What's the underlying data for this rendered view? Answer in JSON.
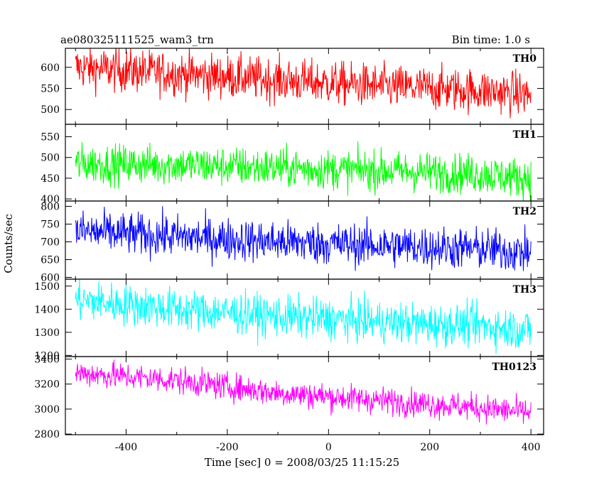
{
  "chart_data": {
    "type": "line",
    "title": "ae080325111525_wam3_trn",
    "bin_time": "Bin time: 1.0 s",
    "xlabel": "Time [sec] 0 = 2008/03/25 11:15:25",
    "ylabel": "Counts/sec",
    "xlim": [
      -520,
      425
    ],
    "xticks": [
      -400,
      -200,
      0,
      200,
      400
    ],
    "data_x_range": [
      -500,
      400
    ],
    "panels": [
      {
        "name": "TH0",
        "color": "#ff0000",
        "ylim": [
          465,
          645
        ],
        "yticks": [
          500,
          550,
          600
        ],
        "trend": {
          "x": [
            -500,
            -300,
            -100,
            100,
            200,
            300,
            400
          ],
          "y": [
            600,
            585,
            570,
            555,
            550,
            545,
            535
          ]
        },
        "noise": 26
      },
      {
        "name": "TH1",
        "color": "#00ff00",
        "ylim": [
          395,
          580
        ],
        "yticks": [
          400,
          450,
          500,
          550
        ],
        "trend": {
          "x": [
            -500,
            -300,
            -100,
            100,
            200,
            300,
            400
          ],
          "y": [
            485,
            482,
            475,
            468,
            465,
            460,
            450
          ]
        },
        "noise": 24
      },
      {
        "name": "TH2",
        "color": "#0000ff",
        "ylim": [
          595,
          815
        ],
        "yticks": [
          600,
          650,
          700,
          750,
          800
        ],
        "trend": {
          "x": [
            -500,
            -300,
            -100,
            100,
            200,
            300,
            400
          ],
          "y": [
            730,
            715,
            700,
            690,
            685,
            680,
            670
          ]
        },
        "noise": 30
      },
      {
        "name": "TH3",
        "color": "#00ffff",
        "ylim": [
          1195,
          1530
        ],
        "yticks": [
          1200,
          1300,
          1400,
          1500
        ],
        "trend": {
          "x": [
            -500,
            -300,
            -100,
            100,
            200,
            300,
            400
          ],
          "y": [
            1440,
            1400,
            1370,
            1345,
            1335,
            1330,
            1310
          ]
        },
        "noise": 45
      },
      {
        "name": "TH0123",
        "color": "#ff00ff",
        "ylim": [
          2795,
          3420
        ],
        "yticks": [
          2800,
          3000,
          3200,
          3400
        ],
        "trend": {
          "x": [
            -500,
            -300,
            -100,
            100,
            200,
            300,
            400
          ],
          "y": [
            3290,
            3230,
            3130,
            3070,
            3040,
            3010,
            2970
          ]
        },
        "noise": 55
      }
    ]
  }
}
